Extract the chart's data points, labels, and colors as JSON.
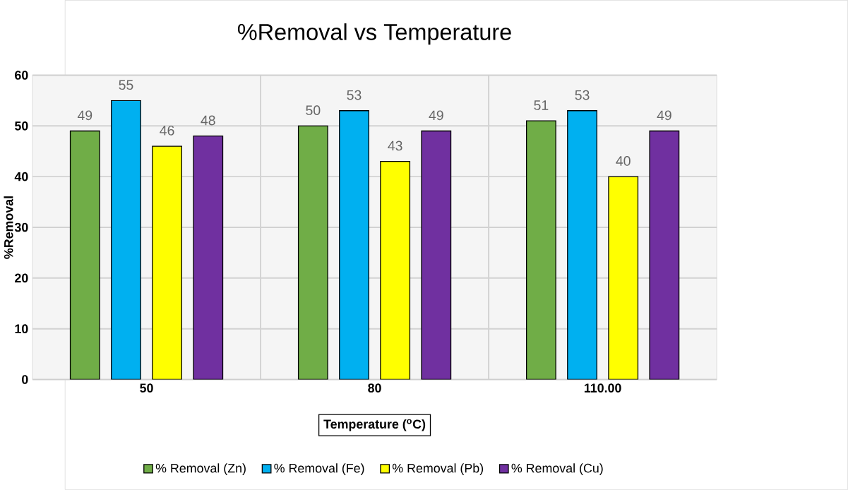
{
  "chart_data": {
    "type": "bar",
    "title": "%Removal vs Temperature",
    "xlabel": "Temperature ($^{o}$C)",
    "ylabel": "%Removal",
    "categories": [
      "50",
      "80",
      "110.00"
    ],
    "series": [
      {
        "name": "% Removal (Zn)",
        "color": "#70ad47",
        "values": [
          49,
          50,
          51
        ]
      },
      {
        "name": "% Removal (Fe)",
        "color": "#00b0f0",
        "values": [
          55,
          53,
          53
        ]
      },
      {
        "name": "% Removal (Pb)",
        "color": "#ffff00",
        "values": [
          46,
          43,
          40
        ]
      },
      {
        "name": "% Removal (Cu)",
        "color": "#7030a0",
        "values": [
          48,
          49,
          49
        ]
      }
    ],
    "ylim": [
      0,
      60
    ],
    "yticks": [
      0,
      10,
      20,
      30,
      40,
      50,
      60
    ],
    "grid": true,
    "legend": "bottom",
    "data_labels": true
  }
}
